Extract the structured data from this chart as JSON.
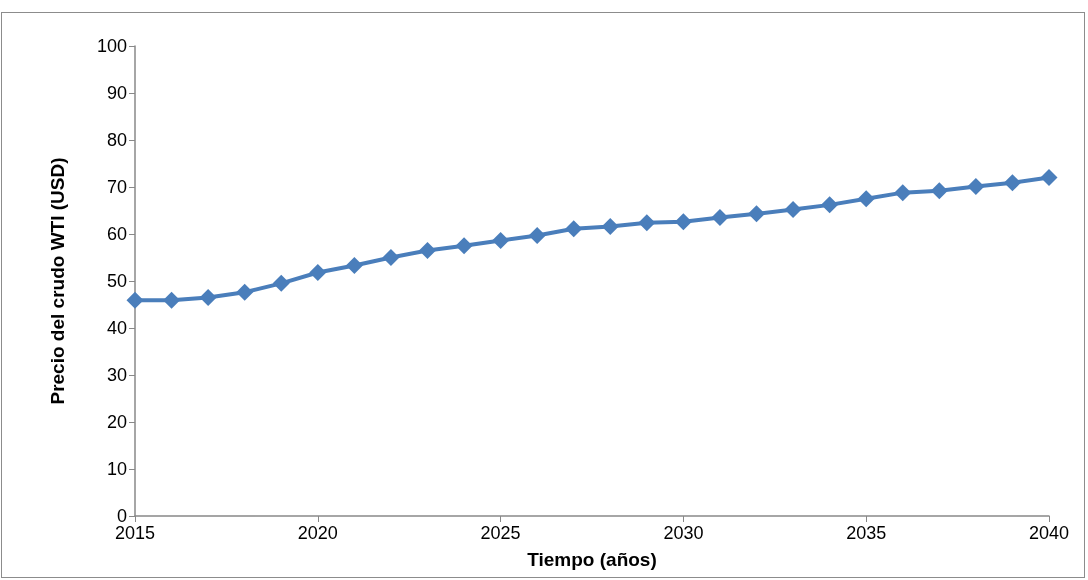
{
  "chart_data": {
    "type": "line",
    "xlabel": "Tiempo (años)",
    "ylabel": "Precio del crudo WTI (USD)",
    "x": [
      2015,
      2016,
      2017,
      2018,
      2019,
      2020,
      2021,
      2022,
      2023,
      2024,
      2025,
      2026,
      2027,
      2028,
      2029,
      2030,
      2031,
      2032,
      2033,
      2034,
      2035,
      2036,
      2037,
      2038,
      2039,
      2040
    ],
    "series": [
      {
        "color": "#4a7ebb",
        "values": [
          45.9,
          45.9,
          46.5,
          47.6,
          49.5,
          51.8,
          53.3,
          55,
          56.5,
          57.5,
          58.6,
          59.7,
          61.1,
          61.6,
          62.4,
          62.6,
          63.5,
          64.3,
          65.2,
          66.2,
          67.5,
          68.8,
          69.2,
          70.1,
          70.9,
          72
        ]
      }
    ],
    "xlim": [
      2015,
      2040
    ],
    "xticks": [
      2015,
      2020,
      2025,
      2030,
      2035,
      2040
    ],
    "ylim": [
      0,
      100
    ],
    "yticks": [
      0,
      10,
      20,
      30,
      40,
      50,
      60,
      70,
      80,
      90,
      100
    ],
    "grid": false,
    "marker": "diamond",
    "line_style": "solid"
  }
}
